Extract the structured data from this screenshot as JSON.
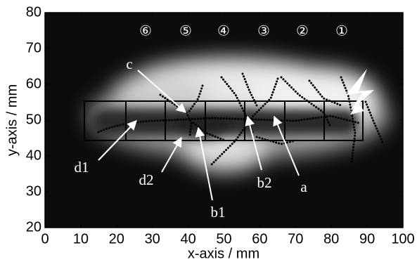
{
  "chart_data": {
    "type": "image",
    "xlabel": "x-axis / mm",
    "ylabel": "y-axis / mm",
    "xlim": [
      0,
      100
    ],
    "xticks": [
      0,
      10,
      20,
      30,
      40,
      50,
      60,
      70,
      80,
      90,
      100
    ],
    "ylim": [
      20,
      80
    ],
    "yticks": [
      20,
      30,
      40,
      50,
      60,
      70,
      80
    ],
    "region_labels": [
      "⑥",
      "⑤",
      "④",
      "③",
      "②",
      "①"
    ],
    "annotations": [
      "c",
      "d1",
      "d2",
      "b1",
      "b2",
      "a"
    ]
  }
}
